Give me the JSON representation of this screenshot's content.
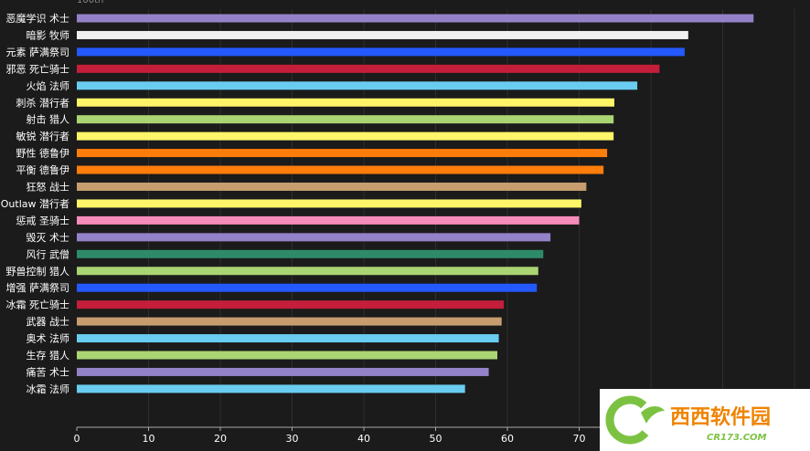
{
  "chart_data": {
    "type": "bar",
    "orientation": "horizontal",
    "categories": [
      "恶魔学识 术士",
      "暗影 牧师",
      "元素 萨满祭司",
      "邪恶 死亡骑士",
      "火焰 法师",
      "刺杀 潜行者",
      "射击 猎人",
      "敏锐 潜行者",
      "野性 德鲁伊",
      "平衡 德鲁伊",
      "狂怒 战士",
      "Outlaw 潜行者",
      "惩戒 圣骑士",
      "毁灭 术士",
      "风行 武僧",
      "野兽控制 猎人",
      "增强 萨满祭司",
      "冰霜 死亡骑士",
      "武器 战士",
      "奥术 法师",
      "生存 猎人",
      "痛苦 术士",
      "冰霜 法师"
    ],
    "values": [
      94.3,
      85.2,
      84.7,
      81.2,
      78.1,
      74.9,
      74.8,
      74.8,
      73.9,
      73.4,
      71.0,
      70.3,
      70.0,
      66.0,
      65.0,
      64.3,
      64.1,
      59.5,
      59.2,
      58.8,
      58.6,
      57.4,
      54.1
    ],
    "colors": [
      "#9482c9",
      "#f0f0f0",
      "#2459ff",
      "#c41e3a",
      "#69ccf0",
      "#fff569",
      "#abd473",
      "#fff569",
      "#ff7d0a",
      "#ff7d0a",
      "#c79c6e",
      "#fff569",
      "#f58cba",
      "#9482c9",
      "#2e8b6a",
      "#abd473",
      "#2459ff",
      "#c41e3a",
      "#c79c6e",
      "#69ccf0",
      "#abd473",
      "#9482c9",
      "#69ccf0"
    ],
    "xticks": [
      0,
      10,
      20,
      30,
      40,
      50,
      60,
      70
    ],
    "xlim": [
      0,
      100
    ],
    "grid": true,
    "top_stub": "100th"
  },
  "watermark": {
    "letter": "C",
    "name": "西西软件园",
    "url": "CR173.COM"
  }
}
